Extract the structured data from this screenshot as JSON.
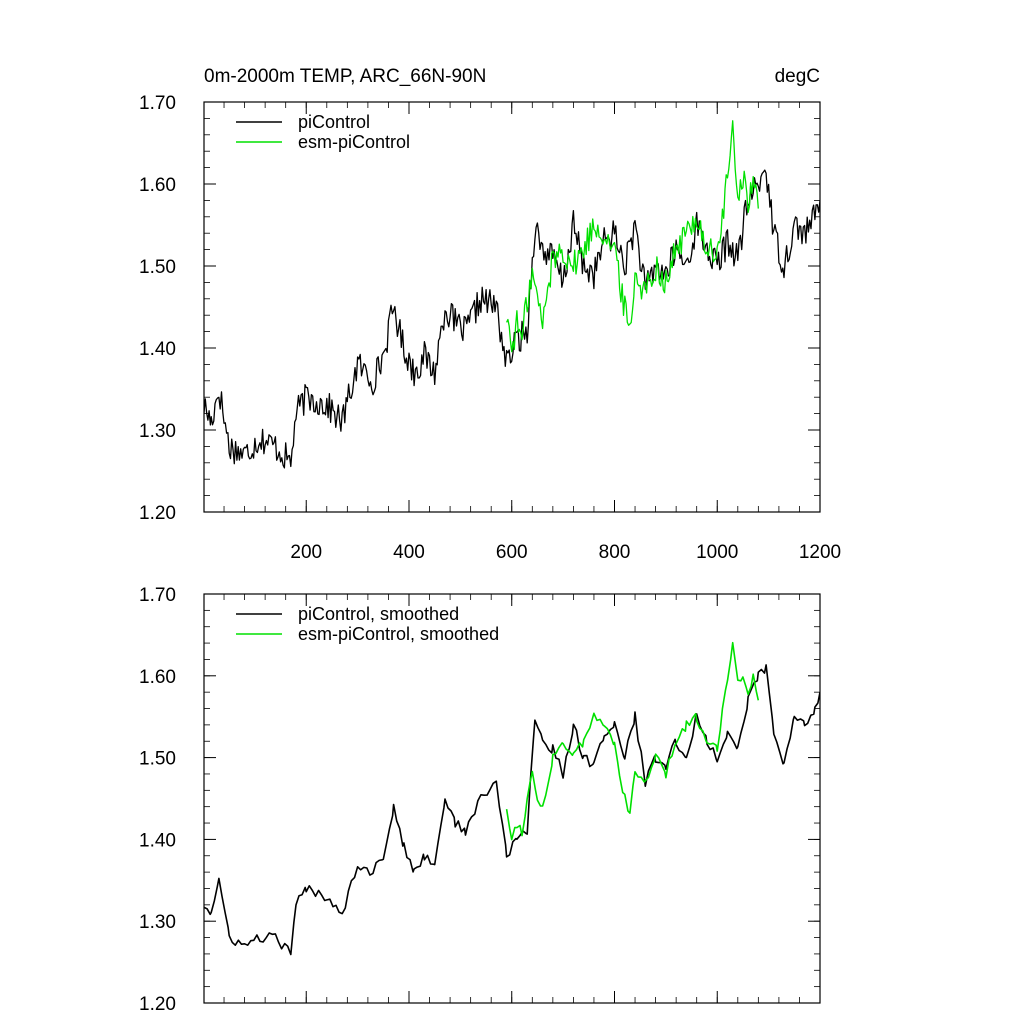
{
  "colors": {
    "piControl": "#000000",
    "esm_piControl": "#00e000",
    "axis": "#000000",
    "background": "#ffffff"
  },
  "chart_data": [
    {
      "type": "line",
      "title": "0m-2000m TEMP, ARC_66N-90N",
      "units": "degC",
      "xlabel": "",
      "ylabel": "",
      "xlim": [
        1,
        1200
      ],
      "ylim": [
        1.2,
        1.7
      ],
      "grid": false,
      "legend_position": "top-left",
      "x_ticks": [
        200,
        400,
        600,
        800,
        1000,
        1200
      ],
      "x_tick_labels": [
        "200",
        "400",
        "600",
        "800",
        "1000",
        "1200"
      ],
      "y_ticks": [
        1.2,
        1.3,
        1.4,
        1.5,
        1.6,
        1.7
      ],
      "y_tick_labels": [
        "1.20",
        "1.30",
        "1.40",
        "1.50",
        "1.60",
        "1.70"
      ],
      "series": [
        {
          "name": "piControl",
          "color": "#000000",
          "x": [
            1,
            15,
            30,
            50,
            80,
            110,
            140,
            170,
            180,
            200,
            240,
            270,
            300,
            330,
            350,
            370,
            390,
            410,
            430,
            450,
            470,
            490,
            510,
            540,
            570,
            590,
            610,
            630,
            645,
            660,
            680,
            700,
            720,
            740,
            760,
            780,
            800,
            820,
            840,
            860,
            880,
            900,
            920,
            940,
            960,
            980,
            1000,
            1020,
            1040,
            1060,
            1080,
            1095,
            1110,
            1130,
            1150,
            1170,
            1190,
            1200
          ],
          "values": [
            1.33,
            1.31,
            1.35,
            1.28,
            1.27,
            1.29,
            1.28,
            1.26,
            1.32,
            1.34,
            1.33,
            1.31,
            1.38,
            1.36,
            1.39,
            1.45,
            1.4,
            1.37,
            1.39,
            1.37,
            1.45,
            1.43,
            1.42,
            1.46,
            1.45,
            1.38,
            1.41,
            1.42,
            1.55,
            1.52,
            1.51,
            1.48,
            1.55,
            1.5,
            1.49,
            1.53,
            1.54,
            1.5,
            1.55,
            1.47,
            1.5,
            1.49,
            1.52,
            1.5,
            1.55,
            1.52,
            1.5,
            1.53,
            1.51,
            1.58,
            1.6,
            1.62,
            1.54,
            1.5,
            1.55,
            1.54,
            1.56,
            1.58
          ]
        },
        {
          "name": "esm-piControl",
          "color": "#00e000",
          "x": [
            590,
            600,
            610,
            620,
            630,
            640,
            650,
            660,
            680,
            700,
            720,
            740,
            760,
            780,
            800,
            810,
            820,
            830,
            840,
            860,
            880,
            900,
            920,
            940,
            960,
            980,
            1000,
            1010,
            1020,
            1030,
            1040,
            1050,
            1060,
            1070,
            1080
          ],
          "values": [
            1.44,
            1.4,
            1.43,
            1.41,
            1.46,
            1.49,
            1.46,
            1.43,
            1.51,
            1.52,
            1.5,
            1.52,
            1.55,
            1.54,
            1.52,
            1.48,
            1.45,
            1.42,
            1.49,
            1.47,
            1.5,
            1.48,
            1.52,
            1.54,
            1.56,
            1.52,
            1.51,
            1.56,
            1.61,
            1.66,
            1.59,
            1.61,
            1.58,
            1.6,
            1.57
          ]
        }
      ]
    },
    {
      "type": "line",
      "title": "",
      "xlim": [
        1,
        1200
      ],
      "ylim": [
        1.2,
        1.7
      ],
      "grid": false,
      "legend_position": "top-left",
      "x_ticks": [
        200,
        400,
        600,
        800,
        1000,
        1200
      ],
      "y_ticks": [
        1.2,
        1.3,
        1.4,
        1.5,
        1.6,
        1.7
      ],
      "y_tick_labels": [
        "1.20",
        "1.30",
        "1.40",
        "1.50",
        "1.60",
        "1.70"
      ],
      "series": [
        {
          "name": "piControl, smoothed",
          "color": "#000000",
          "x": [
            1,
            15,
            30,
            50,
            80,
            110,
            140,
            170,
            180,
            200,
            240,
            270,
            300,
            330,
            350,
            370,
            390,
            410,
            430,
            450,
            470,
            490,
            510,
            540,
            570,
            590,
            610,
            630,
            645,
            660,
            680,
            700,
            720,
            740,
            760,
            780,
            800,
            820,
            840,
            860,
            880,
            900,
            920,
            940,
            960,
            980,
            1000,
            1020,
            1040,
            1060,
            1080,
            1095,
            1110,
            1130,
            1150,
            1170,
            1190,
            1200
          ],
          "values": [
            1.32,
            1.31,
            1.35,
            1.28,
            1.27,
            1.28,
            1.28,
            1.26,
            1.32,
            1.34,
            1.33,
            1.31,
            1.37,
            1.36,
            1.38,
            1.44,
            1.39,
            1.36,
            1.38,
            1.37,
            1.45,
            1.42,
            1.41,
            1.45,
            1.47,
            1.38,
            1.4,
            1.41,
            1.55,
            1.52,
            1.51,
            1.48,
            1.54,
            1.5,
            1.49,
            1.53,
            1.54,
            1.5,
            1.55,
            1.47,
            1.5,
            1.49,
            1.52,
            1.5,
            1.55,
            1.52,
            1.5,
            1.53,
            1.51,
            1.57,
            1.6,
            1.61,
            1.53,
            1.49,
            1.55,
            1.54,
            1.56,
            1.58
          ]
        },
        {
          "name": "esm-piControl, smoothed",
          "color": "#00e000",
          "x": [
            590,
            600,
            610,
            620,
            630,
            640,
            650,
            660,
            680,
            700,
            720,
            740,
            760,
            780,
            800,
            810,
            820,
            830,
            840,
            860,
            880,
            900,
            920,
            940,
            960,
            980,
            1000,
            1010,
            1020,
            1030,
            1040,
            1050,
            1060,
            1070,
            1080
          ],
          "values": [
            1.44,
            1.4,
            1.42,
            1.41,
            1.45,
            1.48,
            1.45,
            1.44,
            1.5,
            1.52,
            1.5,
            1.52,
            1.55,
            1.54,
            1.52,
            1.48,
            1.45,
            1.43,
            1.48,
            1.47,
            1.5,
            1.48,
            1.52,
            1.54,
            1.55,
            1.52,
            1.51,
            1.56,
            1.6,
            1.64,
            1.59,
            1.6,
            1.58,
            1.6,
            1.57
          ]
        }
      ]
    }
  ]
}
